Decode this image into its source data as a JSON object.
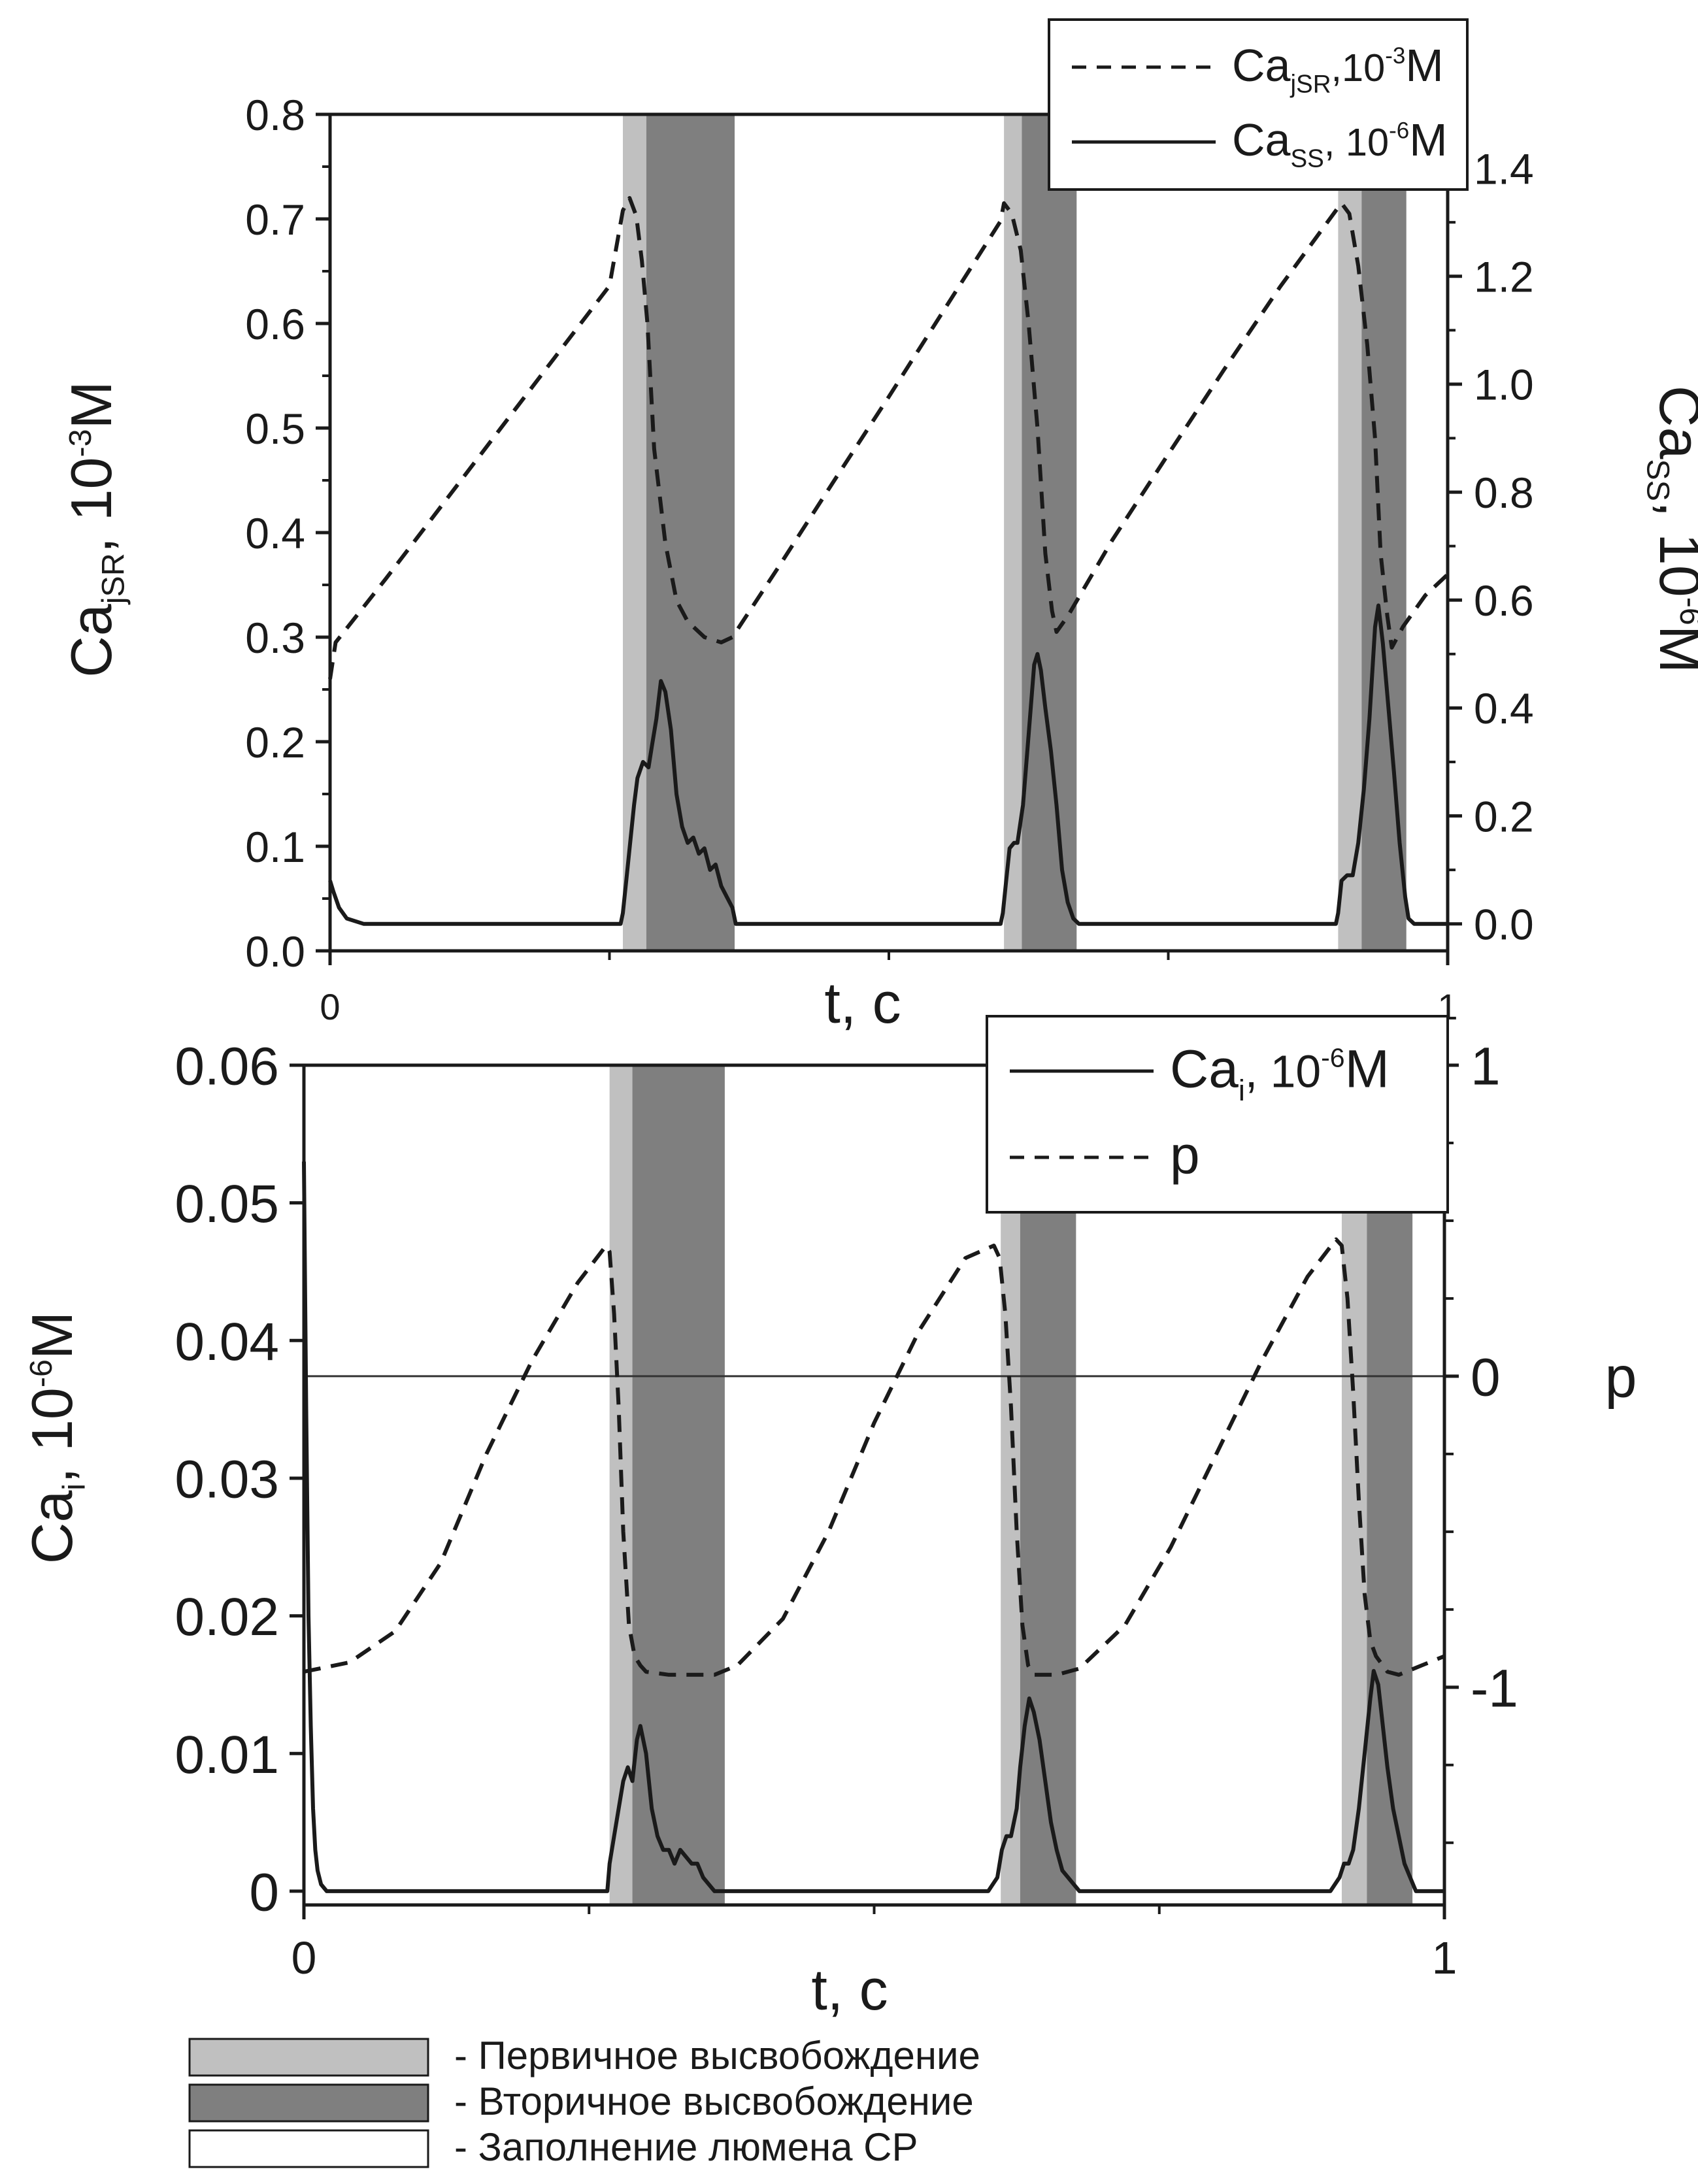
{
  "chart_data": [
    {
      "type": "line",
      "xlabel": "t, c",
      "x_ticks": [
        "0",
        "1"
      ],
      "xlim": [
        0,
        1
      ],
      "y_left": {
        "label_main": "Ca",
        "label_sub": "jSR",
        "label_rest": ",  10",
        "label_exp": "-3",
        "label_unit": "M",
        "ylim": [
          0,
          0.8
        ],
        "ticks": [
          "0.0",
          "0.1",
          "0.2",
          "0.3",
          "0.4",
          "0.5",
          "0.6",
          "0.7",
          "0.8"
        ]
      },
      "y_right": {
        "label_main": "Ca",
        "label_sub": "SS",
        "label_rest": ", 10",
        "label_exp": "-6",
        "label_unit": "M",
        "ylim": [
          -0.05,
          1.5
        ],
        "ticks": [
          "0.0",
          "0.2",
          "0.4",
          "0.6",
          "0.8",
          "1.0",
          "1.2",
          "1.4"
        ]
      },
      "bands": [
        {
          "kind": "primary",
          "x": [
            0.262,
            0.283
          ]
        },
        {
          "kind": "secondary",
          "x": [
            0.283,
            0.362
          ]
        },
        {
          "kind": "primary",
          "x": [
            0.603,
            0.619
          ]
        },
        {
          "kind": "secondary",
          "x": [
            0.619,
            0.668
          ]
        },
        {
          "kind": "primary",
          "x": [
            0.902,
            0.923
          ]
        },
        {
          "kind": "secondary",
          "x": [
            0.923,
            0.963
          ]
        }
      ],
      "series": [
        {
          "name_main": "Ca",
          "name_sub": "jSR",
          "name_rest": ",10",
          "name_exp": "-3",
          "name_unit": "M",
          "axis": "left",
          "style": "dashed",
          "x": [
            0,
            0.005,
            0.05,
            0.1,
            0.15,
            0.2,
            0.25,
            0.262,
            0.268,
            0.274,
            0.279,
            0.284,
            0.29,
            0.3,
            0.31,
            0.32,
            0.335,
            0.35,
            0.36,
            0.4,
            0.45,
            0.5,
            0.55,
            0.6,
            0.603,
            0.61,
            0.618,
            0.625,
            0.633,
            0.64,
            0.646,
            0.65,
            0.66,
            0.7,
            0.75,
            0.8,
            0.85,
            0.9,
            0.905,
            0.912,
            0.92,
            0.928,
            0.935,
            0.94,
            0.946,
            0.95,
            0.96,
            0.98,
            1.0
          ],
          "y": [
            0.26,
            0.295,
            0.356,
            0.426,
            0.496,
            0.566,
            0.636,
            0.708,
            0.72,
            0.703,
            0.66,
            0.6,
            0.48,
            0.39,
            0.335,
            0.315,
            0.3,
            0.295,
            0.3,
            0.365,
            0.448,
            0.53,
            0.614,
            0.698,
            0.715,
            0.705,
            0.67,
            0.6,
            0.5,
            0.38,
            0.325,
            0.305,
            0.32,
            0.393,
            0.475,
            0.556,
            0.635,
            0.708,
            0.715,
            0.705,
            0.655,
            0.58,
            0.49,
            0.38,
            0.32,
            0.29,
            0.31,
            0.34,
            0.36
          ]
        },
        {
          "name_main": "Ca",
          "name_sub": "SS",
          "name_rest": ", 10",
          "name_exp": "-6",
          "name_unit": "M",
          "axis": "right",
          "style": "solid",
          "x": [
            0,
            0.003,
            0.008,
            0.015,
            0.03,
            0.1,
            0.2,
            0.26,
            0.262,
            0.265,
            0.268,
            0.272,
            0.275,
            0.28,
            0.285,
            0.288,
            0.292,
            0.296,
            0.3,
            0.305,
            0.31,
            0.315,
            0.32,
            0.325,
            0.33,
            0.335,
            0.34,
            0.345,
            0.35,
            0.355,
            0.36,
            0.363,
            0.4,
            0.5,
            0.6,
            0.602,
            0.605,
            0.608,
            0.612,
            0.615,
            0.62,
            0.625,
            0.63,
            0.633,
            0.636,
            0.64,
            0.645,
            0.65,
            0.655,
            0.66,
            0.665,
            0.67,
            0.7,
            0.8,
            0.9,
            0.902,
            0.905,
            0.91,
            0.915,
            0.92,
            0.925,
            0.93,
            0.935,
            0.938,
            0.942,
            0.947,
            0.952,
            0.957,
            0.962,
            0.965,
            0.97,
            1.0
          ],
          "y": [
            0.08,
            0.06,
            0.03,
            0.01,
            0.0,
            0.0,
            0.0,
            0.0,
            0.02,
            0.08,
            0.14,
            0.22,
            0.27,
            0.3,
            0.29,
            0.33,
            0.38,
            0.45,
            0.43,
            0.36,
            0.24,
            0.18,
            0.15,
            0.16,
            0.13,
            0.14,
            0.1,
            0.11,
            0.07,
            0.05,
            0.03,
            0.0,
            0.0,
            0.0,
            0.0,
            0.02,
            0.08,
            0.14,
            0.15,
            0.15,
            0.22,
            0.35,
            0.48,
            0.5,
            0.47,
            0.4,
            0.32,
            0.22,
            0.1,
            0.04,
            0.01,
            0.0,
            0.0,
            0.0,
            0.0,
            0.02,
            0.08,
            0.09,
            0.09,
            0.15,
            0.25,
            0.38,
            0.55,
            0.59,
            0.52,
            0.4,
            0.28,
            0.15,
            0.05,
            0.01,
            0.0,
            0.0
          ]
        }
      ],
      "legend_placement": "top-right"
    },
    {
      "type": "line",
      "xlabel": "t, c",
      "x_ticks": [
        "0",
        "1"
      ],
      "xlim": [
        0,
        1
      ],
      "y_left": {
        "label_main": "Ca",
        "label_sub": "i",
        "label_rest": ", 10",
        "label_exp": "-6",
        "label_unit": "M",
        "ylim": [
          -0.001,
          0.06
        ],
        "ticks": [
          "0",
          "0.01",
          "0.02",
          "0.03",
          "0.04",
          "0.05",
          "0.06"
        ]
      },
      "y_right": {
        "label_main": "p",
        "ylim": [
          -1.7,
          1.0
        ],
        "ticks": [
          "-1",
          "0",
          "1"
        ],
        "minor_ticks": [
          -1.5,
          -1.25,
          -0.75,
          -0.5,
          -0.25,
          0.25,
          0.5,
          0.75
        ]
      },
      "zero_line": 0,
      "bands": [
        {
          "kind": "primary",
          "x": [
            0.268,
            0.288
          ]
        },
        {
          "kind": "secondary",
          "x": [
            0.288,
            0.369
          ]
        },
        {
          "kind": "primary",
          "x": [
            0.611,
            0.628
          ]
        },
        {
          "kind": "secondary",
          "x": [
            0.628,
            0.677
          ]
        },
        {
          "kind": "primary",
          "x": [
            0.91,
            0.932
          ]
        },
        {
          "kind": "secondary",
          "x": [
            0.932,
            0.972
          ]
        }
      ],
      "series": [
        {
          "name_main": "Ca",
          "name_sub": "i",
          "name_rest": ", 10",
          "name_exp": "-6",
          "name_unit": "M",
          "axis": "left",
          "style": "solid",
          "x": [
            0,
            0.002,
            0.004,
            0.006,
            0.008,
            0.01,
            0.012,
            0.015,
            0.02,
            0.1,
            0.2,
            0.266,
            0.268,
            0.272,
            0.276,
            0.28,
            0.284,
            0.288,
            0.292,
            0.295,
            0.3,
            0.305,
            0.31,
            0.315,
            0.32,
            0.325,
            0.33,
            0.335,
            0.34,
            0.345,
            0.35,
            0.355,
            0.36,
            0.37,
            0.4,
            0.5,
            0.6,
            0.608,
            0.612,
            0.616,
            0.62,
            0.625,
            0.628,
            0.632,
            0.636,
            0.64,
            0.645,
            0.65,
            0.655,
            0.66,
            0.665,
            0.67,
            0.675,
            0.68,
            0.7,
            0.8,
            0.9,
            0.908,
            0.912,
            0.916,
            0.92,
            0.925,
            0.93,
            0.935,
            0.938,
            0.942,
            0.946,
            0.95,
            0.955,
            0.96,
            0.965,
            0.97,
            0.975,
            0.98,
            1.0
          ],
          "y": [
            0.053,
            0.035,
            0.02,
            0.012,
            0.006,
            0.003,
            0.0015,
            0.0005,
            0.0,
            0.0,
            0.0,
            0.0,
            0.002,
            0.004,
            0.006,
            0.008,
            0.009,
            0.008,
            0.011,
            0.012,
            0.01,
            0.006,
            0.004,
            0.003,
            0.003,
            0.002,
            0.003,
            0.0025,
            0.002,
            0.002,
            0.001,
            0.0005,
            0.0,
            0.0,
            0.0,
            0.0,
            0.0,
            0.001,
            0.003,
            0.004,
            0.004,
            0.006,
            0.009,
            0.012,
            0.014,
            0.013,
            0.011,
            0.008,
            0.005,
            0.003,
            0.0015,
            0.001,
            0.0005,
            0.0,
            0.0,
            0.0,
            0.0,
            0.001,
            0.002,
            0.002,
            0.003,
            0.006,
            0.01,
            0.014,
            0.016,
            0.015,
            0.012,
            0.009,
            0.006,
            0.004,
            0.002,
            0.001,
            0.0,
            0.0,
            0.0
          ]
        },
        {
          "name_main": "p",
          "axis": "right",
          "style": "dashed",
          "x": [
            0,
            0.04,
            0.08,
            0.12,
            0.16,
            0.2,
            0.24,
            0.265,
            0.268,
            0.272,
            0.276,
            0.28,
            0.285,
            0.29,
            0.295,
            0.3,
            0.32,
            0.36,
            0.38,
            0.42,
            0.46,
            0.5,
            0.54,
            0.58,
            0.605,
            0.61,
            0.615,
            0.62,
            0.625,
            0.63,
            0.635,
            0.64,
            0.66,
            0.68,
            0.72,
            0.76,
            0.8,
            0.84,
            0.88,
            0.905,
            0.91,
            0.915,
            0.92,
            0.925,
            0.93,
            0.935,
            0.94,
            0.95,
            0.96,
            0.98,
            1.0
          ],
          "y": [
            -0.95,
            -0.92,
            -0.82,
            -0.6,
            -0.25,
            0.05,
            0.3,
            0.42,
            0.4,
            0.2,
            -0.1,
            -0.5,
            -0.8,
            -0.9,
            -0.93,
            -0.95,
            -0.96,
            -0.96,
            -0.93,
            -0.78,
            -0.5,
            -0.15,
            0.15,
            0.38,
            0.42,
            0.38,
            0.2,
            -0.1,
            -0.5,
            -0.8,
            -0.93,
            -0.96,
            -0.96,
            -0.94,
            -0.8,
            -0.55,
            -0.25,
            0.05,
            0.32,
            0.44,
            0.42,
            0.25,
            -0.05,
            -0.4,
            -0.7,
            -0.85,
            -0.9,
            -0.95,
            -0.96,
            -0.93,
            -0.9
          ]
        }
      ],
      "legend_placement": "top-right"
    }
  ],
  "legend_bottom": [
    {
      "kind": "primary",
      "color": "#c0c0c0",
      "label": "- Первичное высвобождение"
    },
    {
      "kind": "secondary",
      "color": "#7f7f7f",
      "label": "- Вторичное высвобождение"
    },
    {
      "kind": "filling",
      "color": "#ffffff",
      "label": "- Заполнение люмена СР"
    }
  ],
  "colors": {
    "primary": "#c0c0c0",
    "secondary": "#7f7f7f",
    "line": "#1a1a1a"
  }
}
